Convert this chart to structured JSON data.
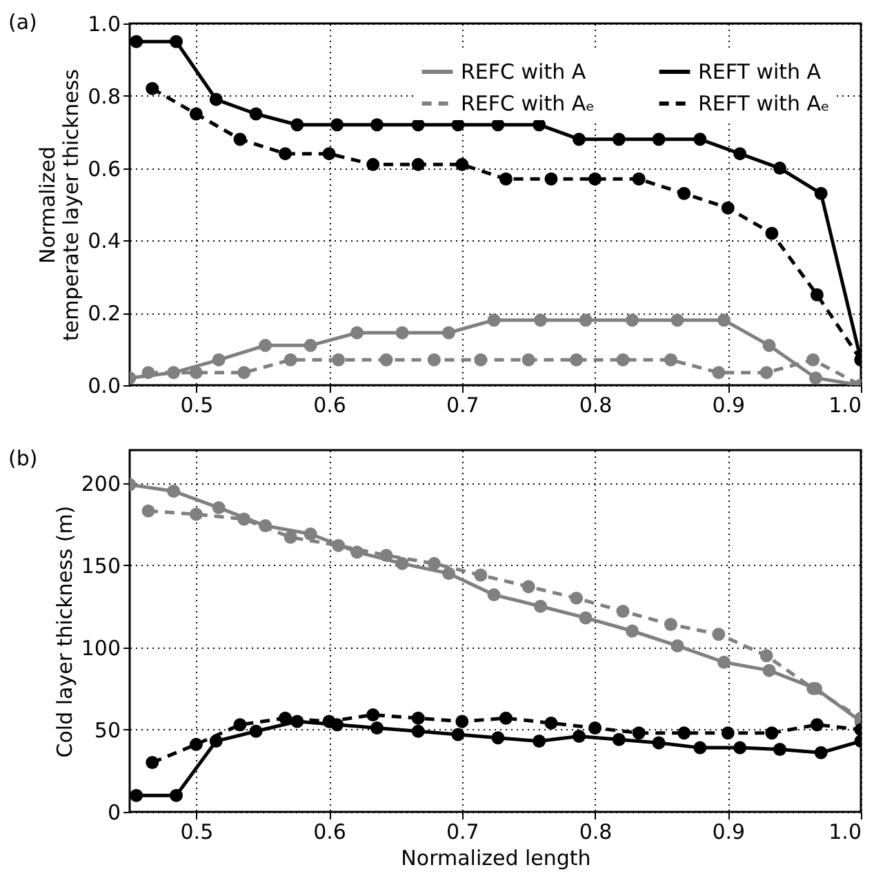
{
  "chart_data": [
    {
      "type": "line",
      "title": "(a)",
      "ylabel": "Normalized\ntemperate layer thickness",
      "xlim": [
        0.45,
        1.0
      ],
      "xticks": [
        0.5,
        0.6,
        0.7,
        0.8,
        0.9,
        {
          "value": 1.0,
          "label": "1.0"
        }
      ],
      "ylim": [
        0,
        1.0
      ],
      "yticks": [
        {
          "value": 0,
          "label": "0.0"
        },
        0.2,
        0.4,
        0.6,
        0.8,
        {
          "value": 1.0,
          "label": "1.0"
        }
      ],
      "grid": true,
      "legend": "top right",
      "marker": "circle",
      "series": [
        {
          "name": "REFC with A",
          "color": "#808080",
          "line_style": "solid",
          "x": [
            0.45,
            0.483,
            0.517,
            0.552,
            0.586,
            0.621,
            0.655,
            0.69,
            0.724,
            0.759,
            0.793,
            0.828,
            0.862,
            0.897,
            0.931,
            0.966,
            1.0
          ],
          "values": [
            0.02,
            0.035,
            0.07,
            0.11,
            0.11,
            0.145,
            0.145,
            0.145,
            0.18,
            0.18,
            0.18,
            0.18,
            0.18,
            0.18,
            0.11,
            0.02,
            0.0
          ]
        },
        {
          "name": "REFC with Aₑ",
          "color": "#808080",
          "line_style": "dashed",
          "x": [
            0.464,
            0.5,
            0.536,
            0.571,
            0.607,
            0.643,
            0.679,
            0.714,
            0.75,
            0.786,
            0.821,
            0.857,
            0.893,
            0.929,
            0.964,
            1.0
          ],
          "values": [
            0.035,
            0.035,
            0.035,
            0.07,
            0.07,
            0.07,
            0.07,
            0.07,
            0.07,
            0.07,
            0.07,
            0.07,
            0.035,
            0.035,
            0.07,
            0.0
          ]
        },
        {
          "name": "REFT with A",
          "color": "#000000",
          "line_style": "solid",
          "x": [
            0.455,
            0.485,
            0.515,
            0.545,
            0.576,
            0.606,
            0.636,
            0.667,
            0.697,
            0.727,
            0.758,
            0.788,
            0.818,
            0.848,
            0.879,
            0.909,
            0.939,
            0.97,
            1.0
          ],
          "values": [
            0.95,
            0.95,
            0.79,
            0.75,
            0.72,
            0.72,
            0.72,
            0.72,
            0.72,
            0.72,
            0.72,
            0.68,
            0.68,
            0.68,
            0.68,
            0.64,
            0.6,
            0.53,
            0.07
          ]
        },
        {
          "name": "REFT with Aₑ",
          "color": "#000000",
          "line_style": "dashed",
          "x": [
            0.467,
            0.5,
            0.533,
            0.567,
            0.6,
            0.633,
            0.667,
            0.7,
            0.733,
            0.767,
            0.8,
            0.833,
            0.867,
            0.9,
            0.933,
            0.967,
            1.0
          ],
          "values": [
            0.82,
            0.75,
            0.68,
            0.64,
            0.64,
            0.61,
            0.61,
            0.61,
            0.57,
            0.57,
            0.57,
            0.57,
            0.53,
            0.49,
            0.42,
            0.25,
            0.07
          ]
        }
      ]
    },
    {
      "type": "line",
      "title": "(b)",
      "xlabel": "Normalized length",
      "ylabel": "Cold layer thickness (m)",
      "xlim": [
        0.45,
        1.0
      ],
      "xticks": [
        0.5,
        0.6,
        0.7,
        0.8,
        0.9,
        {
          "value": 1.0,
          "label": "1.0"
        }
      ],
      "ylim": [
        0,
        220
      ],
      "yticks": [
        0,
        50,
        100,
        150,
        200
      ],
      "grid": true,
      "legend": "top right",
      "marker": "circle",
      "series": [
        {
          "name": "REFC with A",
          "color": "#808080",
          "line_style": "solid",
          "x": [
            0.45,
            0.483,
            0.517,
            0.552,
            0.586,
            0.621,
            0.655,
            0.69,
            0.724,
            0.759,
            0.793,
            0.828,
            0.862,
            0.897,
            0.931,
            0.966,
            1.0
          ],
          "values": [
            199,
            195,
            185,
            174,
            169,
            158,
            151,
            145,
            132,
            125,
            118,
            110,
            101,
            91,
            86,
            75,
            55
          ]
        },
        {
          "name": "REFC with Aₑ",
          "color": "#808080",
          "line_style": "dashed",
          "x": [
            0.464,
            0.5,
            0.536,
            0.571,
            0.607,
            0.643,
            0.679,
            0.714,
            0.75,
            0.786,
            0.821,
            0.857,
            0.893,
            0.929,
            0.964,
            1.0
          ],
          "values": [
            183,
            181,
            178,
            167,
            162,
            156,
            151,
            144,
            137,
            130,
            122,
            114,
            108,
            95,
            75,
            57
          ]
        },
        {
          "name": "REFT with A",
          "color": "#000000",
          "line_style": "solid",
          "x": [
            0.455,
            0.485,
            0.515,
            0.545,
            0.576,
            0.606,
            0.636,
            0.667,
            0.697,
            0.727,
            0.758,
            0.788,
            0.818,
            0.848,
            0.879,
            0.909,
            0.939,
            0.97,
            1.0
          ],
          "values": [
            10,
            10,
            43,
            49,
            55,
            53,
            51,
            49,
            47,
            45,
            43,
            46,
            44,
            42,
            39,
            39,
            38,
            36,
            43
          ]
        },
        {
          "name": "REFT with Aₑ",
          "color": "#000000",
          "line_style": "dashed",
          "x": [
            0.467,
            0.5,
            0.533,
            0.567,
            0.6,
            0.633,
            0.667,
            0.7,
            0.733,
            0.767,
            0.8,
            0.833,
            0.867,
            0.9,
            0.933,
            0.967,
            1.0
          ],
          "values": [
            30,
            41,
            53,
            57,
            55,
            59,
            57,
            55,
            57,
            54,
            51,
            48,
            48,
            48,
            48,
            53,
            50
          ]
        }
      ]
    }
  ]
}
